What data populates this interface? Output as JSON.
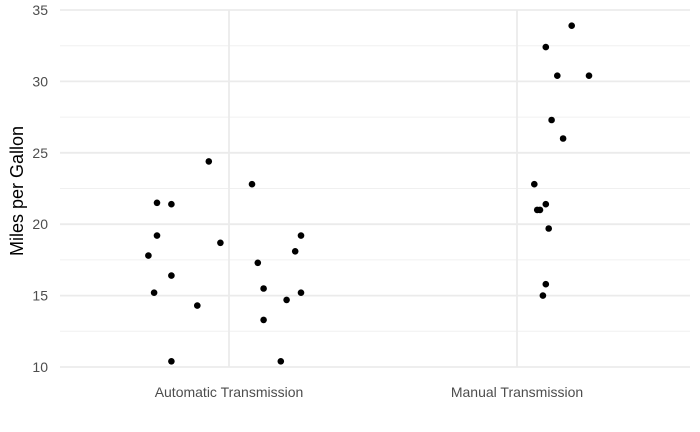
{
  "chart_data": {
    "type": "scatter",
    "title": "",
    "xlabel": "",
    "ylabel": "Miles per Gallon",
    "categories": [
      "Automatic Transmission",
      "Manual Transmission"
    ],
    "ylim": [
      10,
      35
    ],
    "yticks": [
      "10",
      "15",
      "20",
      "25",
      "30",
      "35"
    ],
    "grid": true,
    "legend": "none",
    "point_color": "#000000",
    "series": [
      {
        "category": "Automatic Transmission",
        "points": [
          {
            "jitter": -0.2,
            "y": 21.4
          },
          {
            "jitter": -0.03,
            "y": 18.7
          },
          {
            "jitter": 0.23,
            "y": 18.1
          },
          {
            "jitter": -0.11,
            "y": 14.3
          },
          {
            "jitter": -0.07,
            "y": 24.4
          },
          {
            "jitter": 0.08,
            "y": 22.8
          },
          {
            "jitter": -0.25,
            "y": 19.2
          },
          {
            "jitter": -0.28,
            "y": 17.8
          },
          {
            "jitter": -0.2,
            "y": 16.4
          },
          {
            "jitter": 0.1,
            "y": 17.3
          },
          {
            "jitter": 0.25,
            "y": 15.2
          },
          {
            "jitter": 0.18,
            "y": 10.4
          },
          {
            "jitter": -0.2,
            "y": 10.4
          },
          {
            "jitter": 0.2,
            "y": 14.7
          },
          {
            "jitter": -0.25,
            "y": 21.5
          },
          {
            "jitter": 0.12,
            "y": 15.5
          },
          {
            "jitter": -0.26,
            "y": 15.2
          },
          {
            "jitter": 0.12,
            "y": 13.3
          },
          {
            "jitter": 0.25,
            "y": 19.2
          }
        ]
      },
      {
        "category": "Manual Transmission",
        "points": [
          {
            "jitter": 0.07,
            "y": 21.0
          },
          {
            "jitter": 0.08,
            "y": 21.0
          },
          {
            "jitter": 0.06,
            "y": 22.8
          },
          {
            "jitter": 0.1,
            "y": 32.4
          },
          {
            "jitter": 0.14,
            "y": 30.4
          },
          {
            "jitter": 0.19,
            "y": 33.9
          },
          {
            "jitter": 0.12,
            "y": 27.3
          },
          {
            "jitter": 0.16,
            "y": 26.0
          },
          {
            "jitter": 0.25,
            "y": 30.4
          },
          {
            "jitter": 0.1,
            "y": 15.8
          },
          {
            "jitter": 0.11,
            "y": 19.7
          },
          {
            "jitter": 0.09,
            "y": 15.0
          },
          {
            "jitter": 0.1,
            "y": 21.4
          }
        ]
      }
    ]
  }
}
